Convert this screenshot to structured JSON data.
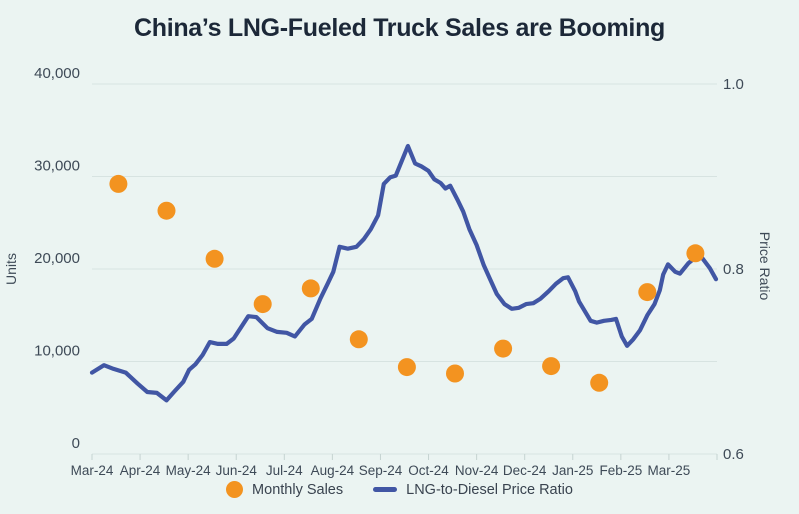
{
  "title": "China’s LNG-Fueled Truck Sales are Booming",
  "colors": {
    "background": "#EBF4F2",
    "grid": "#D7E3E1",
    "tick": "#C5D3D1",
    "title_text": "#1C2838",
    "axis_text": "#3E4A57",
    "sales_orange": "#F39320",
    "ratio_blue": "#4156A4"
  },
  "legend": [
    {
      "label": "Monthly Sales",
      "marker": "dot",
      "color": "#F39320"
    },
    {
      "label": "LNG-to-Diesel Price Ratio",
      "marker": "line",
      "color": "#4156A4"
    }
  ],
  "chart_data": {
    "type": "combo",
    "title": "China’s LNG-Fueled Truck Sales are Booming",
    "grid": true,
    "legend_position": "bottom",
    "x_categories": [
      "Mar-24",
      "Apr-24",
      "May-24",
      "Jun-24",
      "Jul-24",
      "Aug-24",
      "Sep-24",
      "Oct-24",
      "Nov-24",
      "Dec-24",
      "Jan-25",
      "Feb-25",
      "Mar-25"
    ],
    "left_axis": {
      "label": "Units",
      "range": [
        0,
        40000
      ],
      "tick_values": [
        0,
        10000,
        20000,
        30000,
        40000
      ],
      "tick_labels": [
        "0",
        "10,000",
        "20,000",
        "30,000",
        "40,000"
      ]
    },
    "right_axis": {
      "label": "Price Ratio",
      "range": [
        0.6,
        1.0
      ],
      "tick_values": [
        0.6,
        0.8,
        1.0
      ],
      "tick_labels": [
        "0.6",
        "0.8",
        "1.0"
      ]
    },
    "series": [
      {
        "name": "Monthly Sales",
        "type": "scatter",
        "axis": "left",
        "categories": [
          "Mar-24",
          "Apr-24",
          "May-24",
          "Jun-24",
          "Jul-24",
          "Aug-24",
          "Sep-24",
          "Oct-24",
          "Nov-24",
          "Dec-24",
          "Jan-25",
          "Feb-25",
          "Mar-25"
        ],
        "values": [
          29200,
          26300,
          21100,
          16200,
          17900,
          12400,
          9400,
          8700,
          11400,
          9500,
          7700,
          17500,
          21700
        ]
      },
      {
        "name": "LNG-to-Diesel Price Ratio",
        "type": "line",
        "axis": "right",
        "x_unit": "months from Mar-24",
        "points": [
          [
            0.0,
            0.688
          ],
          [
            0.25,
            0.696
          ],
          [
            0.45,
            0.692
          ],
          [
            0.7,
            0.688
          ],
          [
            0.95,
            0.676
          ],
          [
            1.15,
            0.667
          ],
          [
            1.35,
            0.666
          ],
          [
            1.55,
            0.658
          ],
          [
            1.72,
            0.668
          ],
          [
            1.9,
            0.678
          ],
          [
            2.02,
            0.691
          ],
          [
            2.15,
            0.697
          ],
          [
            2.3,
            0.707
          ],
          [
            2.45,
            0.721
          ],
          [
            2.62,
            0.719
          ],
          [
            2.8,
            0.719
          ],
          [
            2.95,
            0.725
          ],
          [
            3.25,
            0.749
          ],
          [
            3.42,
            0.748
          ],
          [
            3.65,
            0.736
          ],
          [
            3.85,
            0.732
          ],
          [
            4.05,
            0.731
          ],
          [
            4.22,
            0.727
          ],
          [
            4.42,
            0.74
          ],
          [
            4.57,
            0.746
          ],
          [
            4.75,
            0.768
          ],
          [
            4.9,
            0.784
          ],
          [
            5.02,
            0.797
          ],
          [
            5.15,
            0.824
          ],
          [
            5.32,
            0.822
          ],
          [
            5.5,
            0.824
          ],
          [
            5.65,
            0.832
          ],
          [
            5.8,
            0.843
          ],
          [
            5.95,
            0.858
          ],
          [
            6.07,
            0.892
          ],
          [
            6.2,
            0.899
          ],
          [
            6.32,
            0.901
          ],
          [
            6.57,
            0.933
          ],
          [
            6.72,
            0.914
          ],
          [
            6.85,
            0.911
          ],
          [
            7.0,
            0.906
          ],
          [
            7.12,
            0.897
          ],
          [
            7.25,
            0.893
          ],
          [
            7.35,
            0.887
          ],
          [
            7.45,
            0.89
          ],
          [
            7.6,
            0.875
          ],
          [
            7.72,
            0.862
          ],
          [
            7.85,
            0.843
          ],
          [
            8.0,
            0.826
          ],
          [
            8.15,
            0.804
          ],
          [
            8.28,
            0.789
          ],
          [
            8.42,
            0.773
          ],
          [
            8.58,
            0.762
          ],
          [
            8.73,
            0.757
          ],
          [
            8.88,
            0.758
          ],
          [
            9.03,
            0.762
          ],
          [
            9.18,
            0.763
          ],
          [
            9.33,
            0.768
          ],
          [
            9.5,
            0.776
          ],
          [
            9.65,
            0.784
          ],
          [
            9.8,
            0.79
          ],
          [
            9.9,
            0.791
          ],
          [
            10.05,
            0.776
          ],
          [
            10.13,
            0.765
          ],
          [
            10.37,
            0.744
          ],
          [
            10.5,
            0.742
          ],
          [
            10.65,
            0.744
          ],
          [
            10.8,
            0.745
          ],
          [
            10.9,
            0.746
          ],
          [
            11.02,
            0.727
          ],
          [
            11.13,
            0.717
          ],
          [
            11.26,
            0.724
          ],
          [
            11.4,
            0.734
          ],
          [
            11.55,
            0.75
          ],
          [
            11.7,
            0.762
          ],
          [
            11.81,
            0.777
          ],
          [
            11.88,
            0.794
          ],
          [
            11.98,
            0.805
          ],
          [
            12.13,
            0.797
          ],
          [
            12.23,
            0.795
          ],
          [
            12.4,
            0.806
          ],
          [
            12.54,
            0.812
          ],
          [
            12.69,
            0.812
          ],
          [
            12.85,
            0.801
          ],
          [
            12.98,
            0.789
          ]
        ]
      }
    ]
  }
}
